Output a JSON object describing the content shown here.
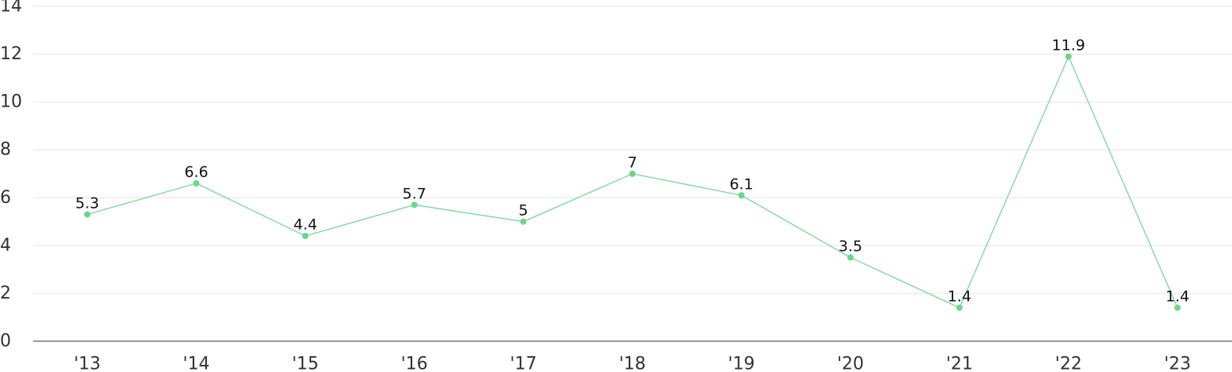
{
  "chart_data": {
    "type": "line",
    "title": "",
    "xlabel": "",
    "ylabel": "",
    "categories": [
      "'13",
      "'14",
      "'15",
      "'16",
      "'17",
      "'18",
      "'19",
      "'20",
      "'21",
      "'22",
      "'23"
    ],
    "series": [
      {
        "values": [
          5.3,
          6.6,
          4.4,
          5.7,
          5,
          7,
          6.1,
          3.5,
          1.4,
          11.9,
          1.4
        ],
        "data_labels": [
          "5.3",
          "6.6",
          "4.4",
          "5.7",
          "5",
          "7",
          "6.1",
          "3.5",
          "1.4",
          "11.9",
          "1.4"
        ],
        "color": "#6fd38f"
      }
    ],
    "yticks": [
      "0",
      "2",
      "4",
      "6",
      "8",
      "10",
      "12",
      "14"
    ],
    "ylim": [
      0,
      14
    ],
    "grid": true,
    "legend": "none"
  }
}
